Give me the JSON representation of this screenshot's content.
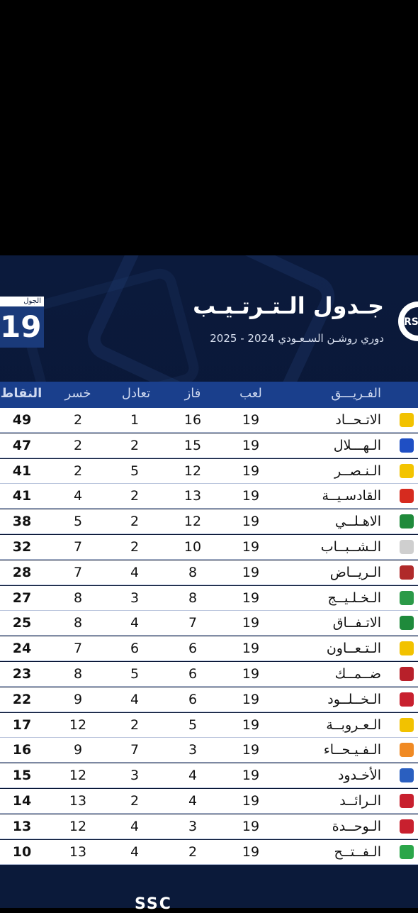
{
  "header": {
    "title": "جـدول الـتـرتـيـب",
    "subtitle": "دوري روشـن السـعـودي 2024 - 2025",
    "round_label": "الجول",
    "round_number": "19"
  },
  "columns": {
    "team": "الفـريـــق",
    "played": "لعب",
    "won": "فاز",
    "draw": "تعادل",
    "lost": "خسر",
    "points": "النقاط"
  },
  "rows": [
    {
      "team": "الاتـحــاد",
      "played": "19",
      "won": "16",
      "draw": "1",
      "lost": "2",
      "points": "49",
      "badge_color": "#f2c200"
    },
    {
      "team": "الـهـــلال",
      "played": "19",
      "won": "15",
      "draw": "2",
      "lost": "2",
      "points": "47",
      "badge_color": "#1f4fc4"
    },
    {
      "team": "الـنـصــر",
      "played": "19",
      "won": "12",
      "draw": "5",
      "lost": "2",
      "points": "41",
      "badge_color": "#f3c400"
    },
    {
      "team": "القادسـيــة",
      "played": "19",
      "won": "13",
      "draw": "2",
      "lost": "4",
      "points": "41",
      "badge_color": "#d62b1f"
    },
    {
      "team": "الاهـلــي",
      "played": "19",
      "won": "12",
      "draw": "2",
      "lost": "5",
      "points": "38",
      "badge_color": "#1f8a3b"
    },
    {
      "team": "الـشــبــاب",
      "played": "19",
      "won": "10",
      "draw": "2",
      "lost": "7",
      "points": "32",
      "badge_color": "#cfcfcf"
    },
    {
      "team": "الـريــاض",
      "played": "19",
      "won": "8",
      "draw": "4",
      "lost": "7",
      "points": "28",
      "badge_color": "#b02a2a"
    },
    {
      "team": "الـخـلـيــج",
      "played": "19",
      "won": "8",
      "draw": "3",
      "lost": "8",
      "points": "27",
      "badge_color": "#2b9a48"
    },
    {
      "team": "الاتـفــاق",
      "played": "19",
      "won": "7",
      "draw": "4",
      "lost": "8",
      "points": "25",
      "badge_color": "#1f8a3b"
    },
    {
      "team": "الـتـعــاون",
      "played": "19",
      "won": "6",
      "draw": "6",
      "lost": "7",
      "points": "24",
      "badge_color": "#f2c200"
    },
    {
      "team": "ضــمــك",
      "played": "19",
      "won": "6",
      "draw": "5",
      "lost": "8",
      "points": "23",
      "badge_color": "#b8202a"
    },
    {
      "team": "الـخــلــود",
      "played": "19",
      "won": "6",
      "draw": "4",
      "lost": "9",
      "points": "22",
      "badge_color": "#c8202e"
    },
    {
      "team": "الـعـروبــة",
      "played": "19",
      "won": "5",
      "draw": "2",
      "lost": "12",
      "points": "17",
      "badge_color": "#f2c200"
    },
    {
      "team": "الـفـيـحــاء",
      "played": "19",
      "won": "3",
      "draw": "7",
      "lost": "9",
      "points": "16",
      "badge_color": "#f08a24"
    },
    {
      "team": "الأخـدود",
      "played": "19",
      "won": "4",
      "draw": "3",
      "lost": "12",
      "points": "15",
      "badge_color": "#2a5fc0"
    },
    {
      "team": "الـرائــد",
      "played": "19",
      "won": "4",
      "draw": "2",
      "lost": "13",
      "points": "14",
      "badge_color": "#c8202e"
    },
    {
      "team": "الـوحــدة",
      "played": "19",
      "won": "3",
      "draw": "4",
      "lost": "12",
      "points": "13",
      "badge_color": "#c8202e"
    },
    {
      "team": "الـفــتــح",
      "played": "19",
      "won": "2",
      "draw": "4",
      "lost": "13",
      "points": "10",
      "badge_color": "#2ba64a"
    }
  ],
  "footer": {
    "text": "SSC"
  }
}
